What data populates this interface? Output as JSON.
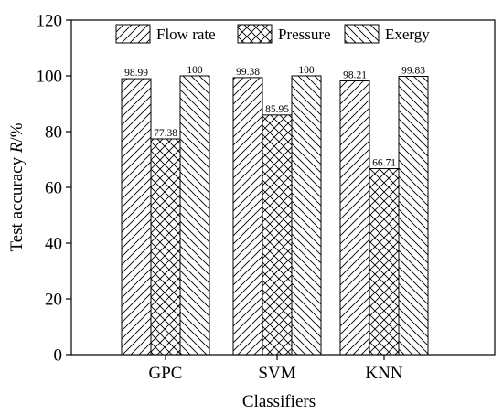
{
  "chart_data": {
    "type": "bar",
    "xlabel": "Classifiers",
    "ylabel_prefix": "Test accuracy ",
    "ylabel_var": "R",
    "ylabel_suffix": "/%",
    "ylim": [
      0,
      120
    ],
    "yticks": [
      0,
      20,
      40,
      60,
      80,
      100,
      120
    ],
    "grid": false,
    "legend_position": "top",
    "categories": [
      "GPC",
      "SVM",
      "KNN"
    ],
    "series": [
      {
        "name": "Flow rate",
        "pattern": "diagonal-forward",
        "values": [
          98.99,
          99.38,
          98.21
        ],
        "labels": [
          "98.99",
          "99.38",
          "98.21"
        ]
      },
      {
        "name": "Pressure",
        "pattern": "crosshatch",
        "values": [
          77.38,
          85.95,
          66.71
        ],
        "labels": [
          "77.38",
          "85.95",
          "66.71"
        ]
      },
      {
        "name": "Exergy",
        "pattern": "diagonal-back",
        "values": [
          100,
          100,
          99.83
        ],
        "labels": [
          "100",
          "100",
          "99.83"
        ]
      }
    ]
  }
}
